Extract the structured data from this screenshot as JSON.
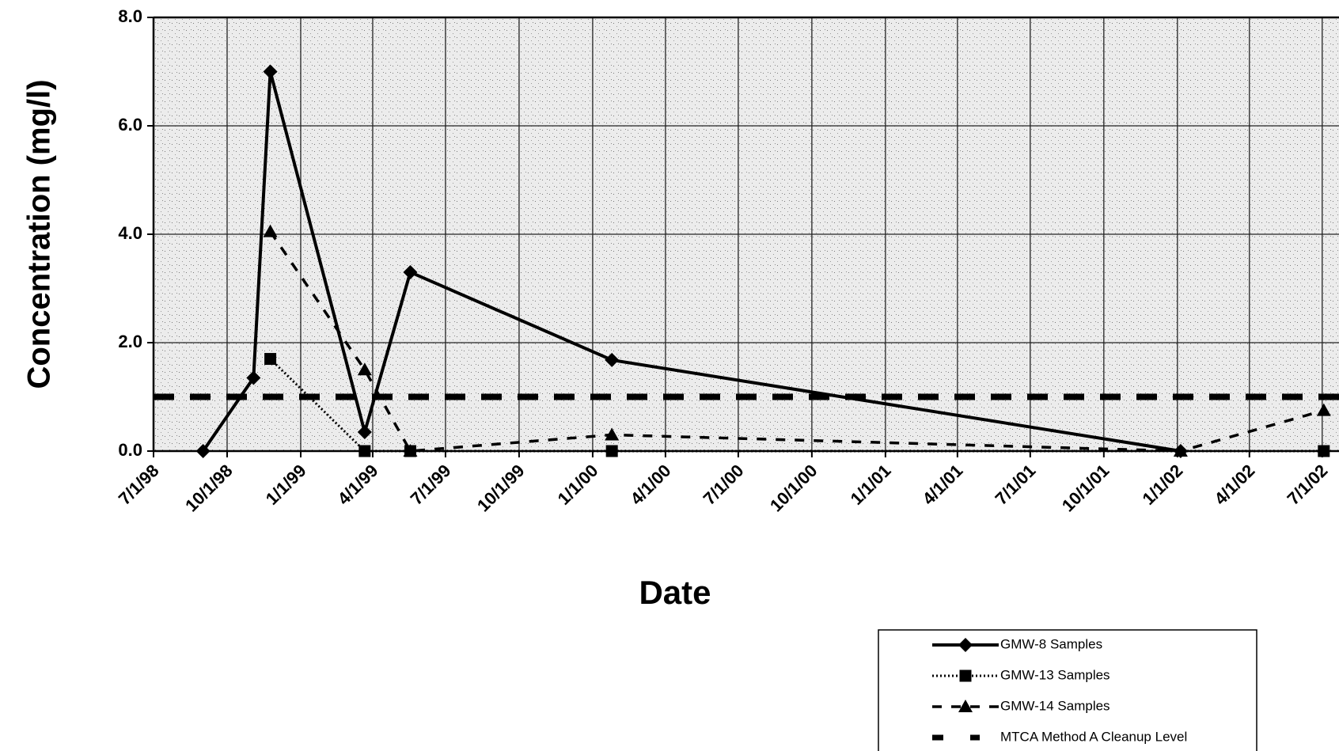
{
  "chart_data": {
    "type": "line",
    "xlabel": "Date",
    "ylabel": "Concentration (mg/l)",
    "xlim": [
      "1998-07-01",
      "2002-07-22"
    ],
    "xticks": [
      {
        "value": "1998-07-01",
        "label": "7/1/98"
      },
      {
        "value": "1998-10-01",
        "label": "10/1/98"
      },
      {
        "value": "1999-01-01",
        "label": "1/1/99"
      },
      {
        "value": "1999-04-01",
        "label": "4/1/99"
      },
      {
        "value": "1999-07-01",
        "label": "7/1/99"
      },
      {
        "value": "1999-10-01",
        "label": "10/1/99"
      },
      {
        "value": "2000-01-01",
        "label": "1/1/00"
      },
      {
        "value": "2000-04-01",
        "label": "4/1/00"
      },
      {
        "value": "2000-07-01",
        "label": "7/1/00"
      },
      {
        "value": "2000-10-01",
        "label": "10/1/00"
      },
      {
        "value": "2001-01-01",
        "label": "1/1/01"
      },
      {
        "value": "2001-04-01",
        "label": "4/1/01"
      },
      {
        "value": "2001-07-01",
        "label": "7/1/01"
      },
      {
        "value": "2001-10-01",
        "label": "10/1/01"
      },
      {
        "value": "2002-01-01",
        "label": "1/1/02"
      },
      {
        "value": "2002-04-01",
        "label": "4/1/02"
      },
      {
        "value": "2002-07-01",
        "label": "7/1/02"
      }
    ],
    "ylim": [
      0,
      8
    ],
    "yticks": [
      {
        "value": 0,
        "label": "0.0"
      },
      {
        "value": 2,
        "label": "2.0"
      },
      {
        "value": 4,
        "label": "4.0"
      },
      {
        "value": 6,
        "label": "6.0"
      },
      {
        "value": 8,
        "label": "8.0"
      }
    ],
    "grid": true,
    "series": [
      {
        "name": "GMW-8 Samples",
        "color": "#000000",
        "marker": "diamond",
        "line_style": "solid",
        "x": [
          "1998-09-01",
          "1998-11-03",
          "1998-11-24",
          "1999-03-22",
          "1999-05-18",
          "2000-01-25",
          "2002-01-05"
        ],
        "values": [
          0,
          1.35,
          7.0,
          0.35,
          3.3,
          1.68,
          0
        ]
      },
      {
        "name": "GMW-13 Samples",
        "color": "#000000",
        "marker": "square",
        "line_style": "dotted",
        "x": [
          "1998-11-24",
          "1999-03-22",
          "1999-05-18",
          "2000-01-25",
          "2002-07-03"
        ],
        "values": [
          1.7,
          0,
          0,
          0,
          0
        ]
      },
      {
        "name": "GMW-14 Samples",
        "color": "#000000",
        "marker": "triangle",
        "line_style": "dashed",
        "x": [
          "1998-11-24",
          "1999-03-22",
          "1999-05-18",
          "2000-01-25",
          "2002-01-05",
          "2002-07-03"
        ],
        "values": [
          4.05,
          1.5,
          0,
          0.3,
          0,
          0.75
        ]
      }
    ],
    "reference_line": {
      "name": "MTCA Method A Cleanup Level",
      "value": 1.0,
      "color": "#000000"
    }
  }
}
